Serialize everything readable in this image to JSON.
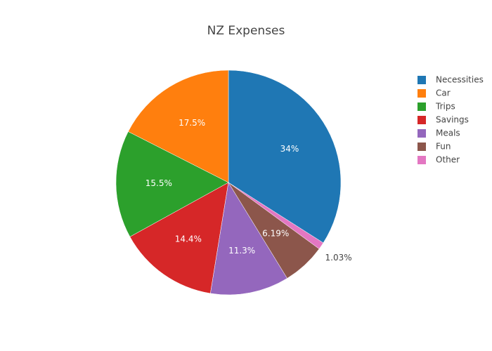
{
  "chart_data": {
    "type": "pie",
    "title": "NZ Expenses",
    "categories": [
      "Necessities",
      "Car",
      "Trips",
      "Savings",
      "Meals",
      "Fun",
      "Other"
    ],
    "values": [
      34,
      17.5,
      15.5,
      14.4,
      11.3,
      6.19,
      1.03
    ],
    "value_labels": [
      "34%",
      "17.5%",
      "15.5%",
      "14.4%",
      "11.3%",
      "6.19%",
      "1.03%"
    ],
    "colors": [
      "#1f77b4",
      "#ff7f0e",
      "#2ca02c",
      "#d62728",
      "#9467bd",
      "#8c564b",
      "#e377c2"
    ],
    "legend": "right"
  }
}
